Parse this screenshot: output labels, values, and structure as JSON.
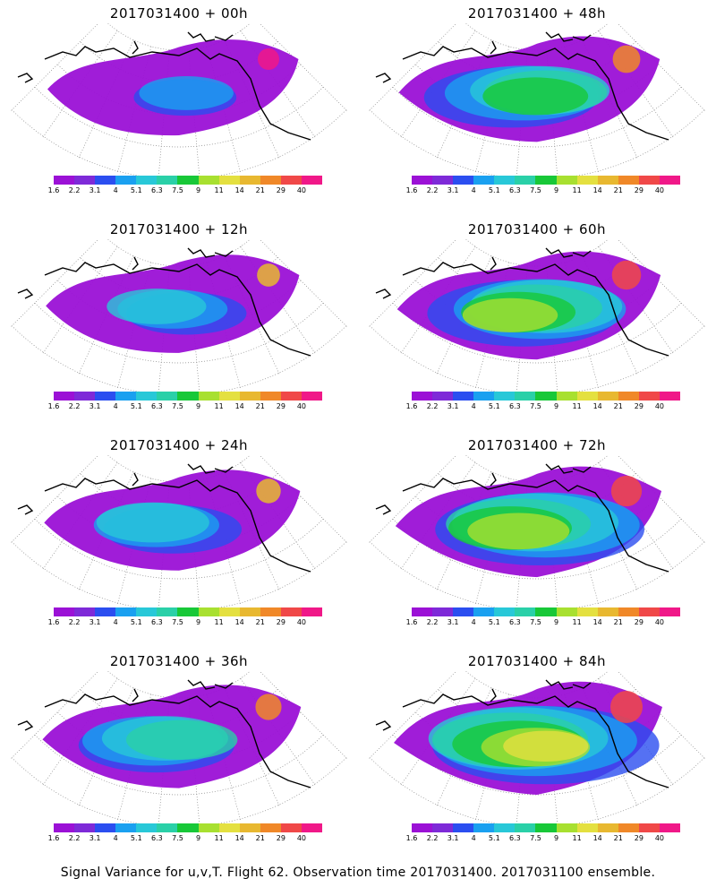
{
  "panels": [
    {
      "title": "2017031400 + 00h",
      "lead": 0
    },
    {
      "title": "2017031400 + 48h",
      "lead": 48
    },
    {
      "title": "2017031400 + 12h",
      "lead": 12
    },
    {
      "title": "2017031400 + 60h",
      "lead": 60
    },
    {
      "title": "2017031400 + 24h",
      "lead": 24
    },
    {
      "title": "2017031400 + 72h",
      "lead": 72
    },
    {
      "title": "2017031400 + 36h",
      "lead": 36
    },
    {
      "title": "2017031400 + 84h",
      "lead": 84
    }
  ],
  "colorbar": {
    "tick_labels": [
      "1.6",
      "2.2",
      "3.1",
      "4",
      "5.1",
      "6.3",
      "7.5",
      "9",
      "11",
      "14",
      "21",
      "29",
      "40"
    ],
    "colors": [
      "#9b11d6",
      "#7e2ad8",
      "#2b4ef0",
      "#1aa0f0",
      "#28c8d8",
      "#2ad0a8",
      "#18c838",
      "#a8e030",
      "#e4e040",
      "#e8b830",
      "#f08828",
      "#f04848",
      "#f01888"
    ]
  },
  "footer": "Signal Variance for u,v,T. Flight 62. Observation time 2017031400. 2017031100 ensemble."
}
